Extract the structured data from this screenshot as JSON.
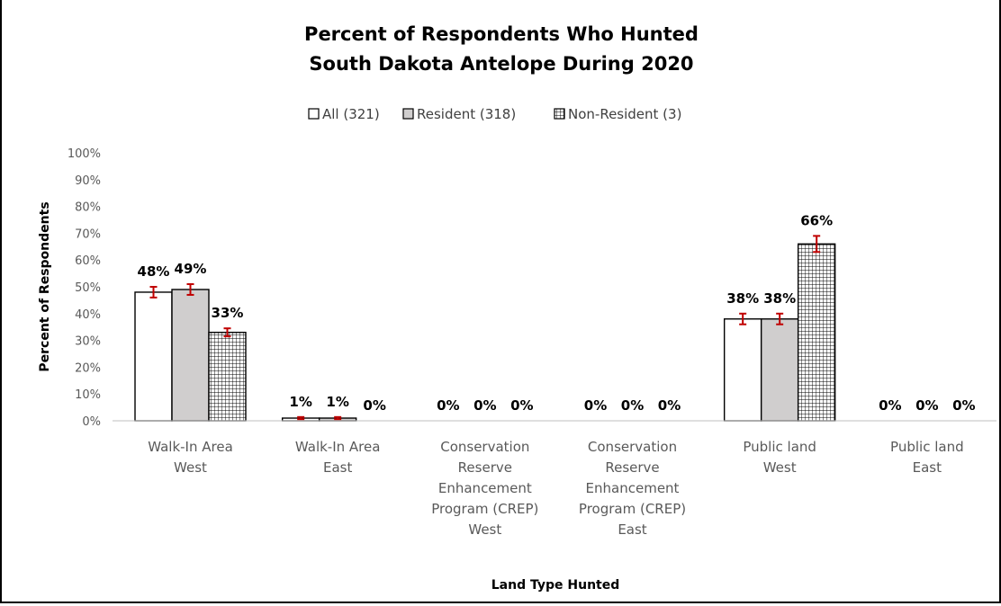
{
  "chart_data": {
    "type": "bar",
    "title": [
      "Percent of Respondents Who Hunted",
      "South Dakota Antelope During 2020"
    ],
    "xlabel": "Land Type Hunted",
    "ylabel": "Percent of Respondents",
    "ylim": [
      0,
      100
    ],
    "yticks": [
      "0%",
      "10%",
      "20%",
      "30%",
      "40%",
      "50%",
      "60%",
      "70%",
      "80%",
      "90%",
      "100%"
    ],
    "grid": false,
    "legend_position": "top",
    "categories": [
      [
        "Walk-In Area",
        "West"
      ],
      [
        "Walk-In Area",
        "East"
      ],
      [
        "Conservation",
        "Reserve",
        "Enhancement",
        "Program (CREP)",
        "West"
      ],
      [
        "Conservation",
        "Reserve",
        "Enhancement",
        "Program (CREP)",
        "East"
      ],
      [
        "Public land",
        "West"
      ],
      [
        "Public land",
        "East"
      ]
    ],
    "series": [
      {
        "name": "All (321)",
        "pattern": "white",
        "values": [
          48,
          1,
          0,
          0,
          38,
          0
        ],
        "labels": [
          "48%",
          "1%",
          "0%",
          "0%",
          "38%",
          "0%"
        ]
      },
      {
        "name": "Resident (318)",
        "pattern": "gray",
        "values": [
          49,
          1,
          0,
          0,
          38,
          0
        ],
        "labels": [
          "49%",
          "1%",
          "0%",
          "0%",
          "38%",
          "0%"
        ]
      },
      {
        "name": "Non-Resident (3)",
        "pattern": "grid",
        "values": [
          33,
          0,
          0,
          0,
          66,
          0
        ],
        "labels": [
          "33%",
          "0%",
          "0%",
          "0%",
          "66%",
          "0%"
        ]
      }
    ],
    "error_bars": [
      [
        2,
        0.4,
        0,
        0,
        2,
        0
      ],
      [
        2,
        0.4,
        0,
        0,
        2,
        0
      ],
      [
        1.5,
        0,
        0,
        0,
        3,
        0
      ]
    ],
    "colors": {
      "gray_fill": "#d0cece",
      "error_bar": "#c00000",
      "axis": "#bfbfbf"
    }
  }
}
